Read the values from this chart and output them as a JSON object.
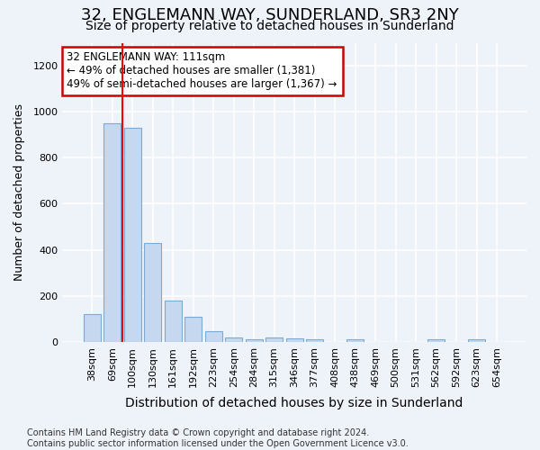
{
  "title": "32, ENGLEMANN WAY, SUNDERLAND, SR3 2NY",
  "subtitle": "Size of property relative to detached houses in Sunderland",
  "xlabel": "Distribution of detached houses by size in Sunderland",
  "ylabel": "Number of detached properties",
  "bar_color": "#c5d8f0",
  "bar_edge_color": "#7aabd4",
  "categories": [
    "38sqm",
    "69sqm",
    "100sqm",
    "130sqm",
    "161sqm",
    "192sqm",
    "223sqm",
    "254sqm",
    "284sqm",
    "315sqm",
    "346sqm",
    "377sqm",
    "408sqm",
    "438sqm",
    "469sqm",
    "500sqm",
    "531sqm",
    "562sqm",
    "592sqm",
    "623sqm",
    "654sqm"
  ],
  "values": [
    120,
    950,
    930,
    430,
    180,
    110,
    45,
    18,
    12,
    18,
    15,
    10,
    0,
    12,
    0,
    0,
    0,
    12,
    0,
    12,
    0
  ],
  "ylim": [
    0,
    1300
  ],
  "yticks": [
    0,
    200,
    400,
    600,
    800,
    1000,
    1200
  ],
  "redline_index": 2,
  "annotation_text": "32 ENGLEMANN WAY: 111sqm\n← 49% of detached houses are smaller (1,381)\n49% of semi-detached houses are larger (1,367) →",
  "annotation_box_facecolor": "#ffffff",
  "annotation_box_edgecolor": "#cc0000",
  "footnote": "Contains HM Land Registry data © Crown copyright and database right 2024.\nContains public sector information licensed under the Open Government Licence v3.0.",
  "background_color": "#eef2f9",
  "grid_color": "#ffffff",
  "title_fontsize": 13,
  "subtitle_fontsize": 10,
  "xlabel_fontsize": 10,
  "ylabel_fontsize": 9,
  "tick_fontsize": 8,
  "annot_fontsize": 8.5,
  "footnote_fontsize": 7
}
